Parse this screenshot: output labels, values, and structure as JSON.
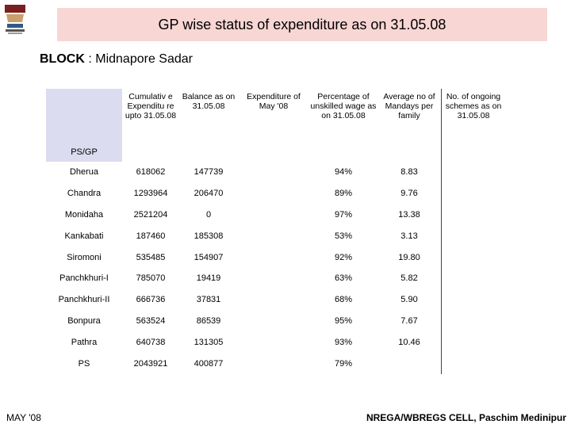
{
  "title": "GP wise status of expenditure as on 31.05.08",
  "block": {
    "label": "BLOCK",
    "separator": ":",
    "value": "Midnapore Sadar"
  },
  "table": {
    "headers": [
      "PS/GP",
      "Cumulativ e Expenditu re upto 31.05.08",
      "Balance as on 31.05.08",
      "Expenditure of May '08",
      "Percentage of unskilled wage as on 31.05.08",
      "Average no of Mandays per family",
      "No. of ongoing schemes as on 31.05.08"
    ],
    "rows": [
      [
        "Dherua",
        "618062",
        "147739",
        "",
        "94%",
        "8.83",
        ""
      ],
      [
        "Chandra",
        "1293964",
        "206470",
        "",
        "89%",
        "9.76",
        ""
      ],
      [
        "Monidaha",
        "2521204",
        "0",
        "",
        "97%",
        "13.38",
        ""
      ],
      [
        "Kankabati",
        "187460",
        "185308",
        "",
        "53%",
        "3.13",
        ""
      ],
      [
        "Siromoni",
        "535485",
        "154907",
        "",
        "92%",
        "19.80",
        ""
      ],
      [
        "Panchkhuri-I",
        "785070",
        "19419",
        "",
        "63%",
        "5.82",
        ""
      ],
      [
        "Panchkhuri-II",
        "666736",
        "37831",
        "",
        "68%",
        "5.90",
        ""
      ],
      [
        "Bonpura",
        "563524",
        "86539",
        "",
        "95%",
        "7.67",
        ""
      ],
      [
        "Pathra",
        "640738",
        "131305",
        "",
        "93%",
        "10.46",
        ""
      ],
      [
        "PS",
        "2043921",
        "400877",
        "",
        "79%",
        "",
        ""
      ]
    ]
  },
  "footer": {
    "left": "MAY '08",
    "right": "NREGA/WBREGS CELL, Paschim Medinipur"
  },
  "colors": {
    "title_band": "#f8d6d4",
    "header_shade": "#dcdcf0"
  }
}
